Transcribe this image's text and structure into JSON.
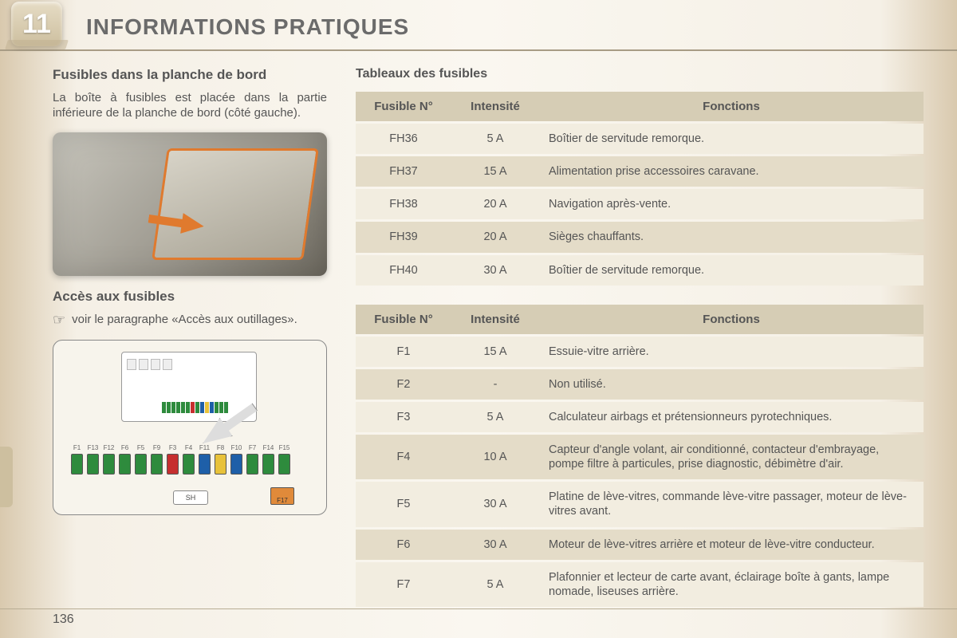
{
  "chapter_number": "11",
  "section_title": "INFORMATIONS PRATIQUES",
  "page_number": "136",
  "left": {
    "heading": "Fusibles dans la planche de bord",
    "paragraph": "La boîte à fusibles est placée dans la partie inférieure de la planche de bord (côté gauche).",
    "access_heading": "Accès aux fusibles",
    "access_text": "voir le paragraphe «Accès aux outillages».",
    "diagram": {
      "labels": [
        "F1",
        "F13",
        "F12",
        "F6",
        "F5",
        "F9",
        "F3",
        "F4",
        "F11",
        "F8",
        "F10",
        "F7",
        "F14",
        "F15"
      ],
      "fuse_colors": [
        "#2e8b3d",
        "#2e8b3d",
        "#2e8b3d",
        "#2e8b3d",
        "#2e8b3d",
        "#2e8b3d",
        "#c62f2f",
        "#2e8b3d",
        "#1e5fa8",
        "#e8c23a",
        "#1e5fa8",
        "#2e8b3d",
        "#2e8b3d",
        "#2e8b3d"
      ],
      "sh_label": "SH",
      "f17_label": "F17"
    }
  },
  "right": {
    "tables_title": "Tableaux des fusibles",
    "headers": {
      "c1": "Fusible N°",
      "c2": "Intensité",
      "c3": "Fonctions"
    },
    "table1": [
      {
        "n": "FH36",
        "a": "5 A",
        "f": "Boîtier de servitude remorque."
      },
      {
        "n": "FH37",
        "a": "15 A",
        "f": "Alimentation prise accessoires caravane."
      },
      {
        "n": "FH38",
        "a": "20 A",
        "f": "Navigation après-vente."
      },
      {
        "n": "FH39",
        "a": "20 A",
        "f": "Sièges chauffants."
      },
      {
        "n": "FH40",
        "a": "30 A",
        "f": "Boîtier de servitude remorque."
      }
    ],
    "table2": [
      {
        "n": "F1",
        "a": "15 A",
        "f": "Essuie-vitre arrière."
      },
      {
        "n": "F2",
        "a": "-",
        "f": "Non utilisé."
      },
      {
        "n": "F3",
        "a": "5 A",
        "f": "Calculateur airbags et prétensionneurs pyrotechniques."
      },
      {
        "n": "F4",
        "a": "10 A",
        "f": "Capteur d'angle volant, air conditionné, contacteur d'embrayage, pompe filtre à particules, prise diagnostic, débimètre d'air."
      },
      {
        "n": "F5",
        "a": "30 A",
        "f": "Platine de lève-vitres, commande lève-vitre passager, moteur de lève-vitres avant."
      },
      {
        "n": "F6",
        "a": "30 A",
        "f": "Moteur de lève-vitres arrière et moteur de lève-vitre conducteur."
      },
      {
        "n": "F7",
        "a": "5 A",
        "f": "Plafonnier et lecteur de carte avant, éclairage boîte à gants, lampe nomade, liseuses arrière."
      }
    ]
  },
  "colors": {
    "header_bg": "#d6cdb5",
    "row_odd": "#f2ede0",
    "row_even": "#e4dcc8",
    "accent": "#e07a2e"
  }
}
